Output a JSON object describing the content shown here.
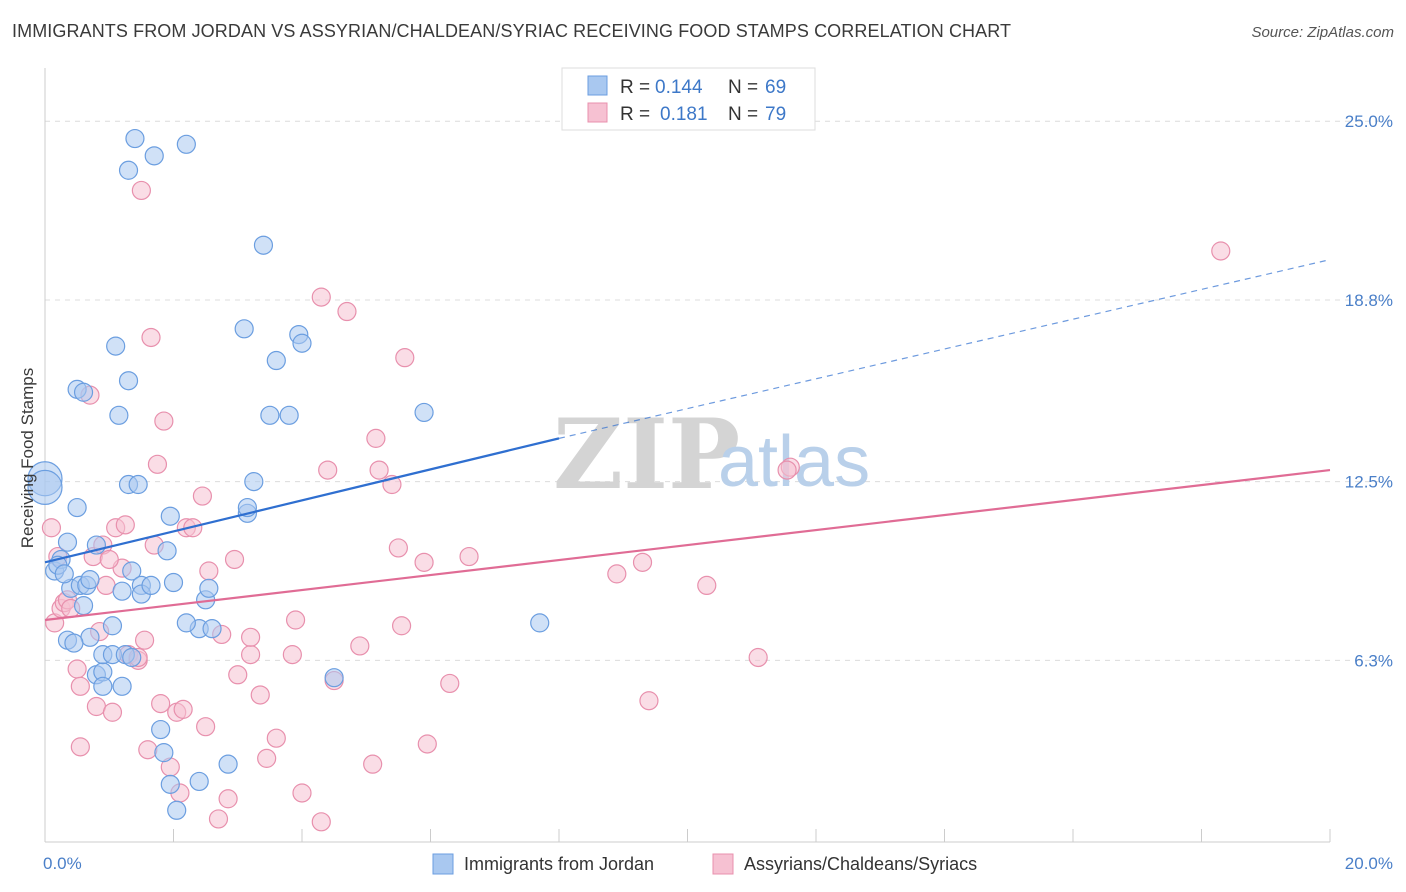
{
  "title": "IMMIGRANTS FROM JORDAN VS ASSYRIAN/CHALDEAN/SYRIAC RECEIVING FOOD STAMPS CORRELATION CHART",
  "source": "Source: ZipAtlas.com",
  "watermark": {
    "zip": "ZIP",
    "atlas": "atlas"
  },
  "legend_top": {
    "rows": [
      {
        "r_label": "R = ",
        "r_value": "0.144",
        "n_label": "N = ",
        "n_value": "69"
      },
      {
        "r_label": "R = ",
        "r_value": "0.181",
        "n_label": "N = ",
        "n_value": "79"
      }
    ]
  },
  "legend_bottom": {
    "items": [
      {
        "label": "Immigrants from Jordan"
      },
      {
        "label": "Assyrians/Chaldeans/Syriacs"
      }
    ]
  },
  "colors": {
    "blue_fill": "#a9c8f0",
    "blue_stroke": "#6b9ee0",
    "blue_line": "#2f6fd0",
    "pink_fill": "#f6c1d2",
    "pink_stroke": "#e890ad",
    "pink_line": "#e06c95",
    "grid": "#dcdcdc",
    "axis_text": "#4a7fc8"
  },
  "chart_data": {
    "type": "scatter",
    "title": "IMMIGRANTS FROM JORDAN VS ASSYRIAN/CHALDEAN/SYRIAC RECEIVING FOOD STAMPS CORRELATION CHART",
    "xlabel": "",
    "ylabel": "Receiving Food Stamps",
    "xlim": [
      0,
      20
    ],
    "ylim": [
      0,
      26.5
    ],
    "x_tick_labels": [
      "0.0%",
      "20.0%"
    ],
    "y_ticks": [
      6.3,
      12.5,
      18.8,
      25.0
    ],
    "y_tick_labels": [
      "6.3%",
      "12.5%",
      "18.8%",
      "25.0%"
    ],
    "grid": true,
    "legend_position": "top-center",
    "series": [
      {
        "name": "Immigrants from Jordan",
        "color": "#a9c8f0",
        "trend": {
          "x": [
            0.0,
            8.0
          ],
          "y": [
            9.7,
            14.0
          ],
          "dashed_to": [
            20.0,
            20.2
          ]
        },
        "points": [
          [
            0.0,
            12.6
          ],
          [
            0.0,
            12.3
          ],
          [
            0.15,
            9.4
          ],
          [
            0.25,
            9.8
          ],
          [
            0.2,
            9.6
          ],
          [
            0.35,
            10.4
          ],
          [
            0.5,
            15.7
          ],
          [
            0.6,
            15.6
          ],
          [
            0.5,
            11.6
          ],
          [
            0.4,
            8.8
          ],
          [
            0.55,
            8.9
          ],
          [
            0.65,
            8.9
          ],
          [
            0.7,
            9.1
          ],
          [
            0.6,
            8.2
          ],
          [
            0.35,
            7.0
          ],
          [
            0.7,
            7.1
          ],
          [
            0.8,
            5.8
          ],
          [
            0.9,
            5.9
          ],
          [
            0.9,
            5.4
          ],
          [
            1.2,
            5.4
          ],
          [
            0.9,
            6.5
          ],
          [
            1.05,
            6.5
          ],
          [
            1.25,
            6.5
          ],
          [
            1.35,
            6.4
          ],
          [
            0.8,
            10.3
          ],
          [
            1.05,
            7.5
          ],
          [
            1.1,
            17.2
          ],
          [
            1.15,
            14.8
          ],
          [
            1.3,
            12.4
          ],
          [
            1.45,
            12.4
          ],
          [
            1.35,
            9.4
          ],
          [
            1.3,
            16.0
          ],
          [
            1.5,
            8.9
          ],
          [
            1.5,
            8.6
          ],
          [
            1.4,
            24.4
          ],
          [
            1.3,
            23.3
          ],
          [
            1.7,
            23.8
          ],
          [
            2.2,
            24.2
          ],
          [
            1.95,
            11.3
          ],
          [
            1.9,
            10.1
          ],
          [
            2.0,
            9.0
          ],
          [
            1.8,
            3.9
          ],
          [
            1.85,
            3.1
          ],
          [
            1.95,
            2.0
          ],
          [
            2.05,
            1.1
          ],
          [
            2.4,
            7.4
          ],
          [
            2.6,
            7.4
          ],
          [
            2.4,
            2.1
          ],
          [
            2.5,
            8.4
          ],
          [
            2.55,
            8.8
          ],
          [
            2.85,
            2.7
          ],
          [
            3.1,
            17.8
          ],
          [
            3.4,
            20.7
          ],
          [
            3.15,
            11.4
          ],
          [
            3.15,
            11.6
          ],
          [
            3.25,
            12.5
          ],
          [
            3.5,
            14.8
          ],
          [
            3.6,
            16.7
          ],
          [
            3.8,
            14.8
          ],
          [
            3.95,
            17.6
          ],
          [
            4.0,
            17.3
          ],
          [
            4.5,
            5.7
          ],
          [
            5.9,
            14.9
          ],
          [
            7.7,
            7.6
          ],
          [
            2.2,
            7.6
          ],
          [
            1.2,
            8.7
          ],
          [
            0.3,
            9.3
          ],
          [
            0.45,
            6.9
          ],
          [
            1.65,
            8.9
          ]
        ]
      },
      {
        "name": "Assyrians/Chaldeans/Syriacs",
        "color": "#f6c1d2",
        "trend": {
          "x": [
            0.0,
            20.0
          ],
          "y": [
            7.7,
            12.9
          ]
        },
        "points": [
          [
            0.1,
            10.9
          ],
          [
            0.15,
            7.6
          ],
          [
            0.25,
            8.1
          ],
          [
            0.3,
            8.3
          ],
          [
            0.35,
            8.4
          ],
          [
            0.5,
            6.0
          ],
          [
            0.55,
            5.4
          ],
          [
            0.55,
            3.3
          ],
          [
            0.7,
            15.5
          ],
          [
            0.75,
            9.9
          ],
          [
            0.8,
            4.7
          ],
          [
            0.85,
            7.3
          ],
          [
            0.9,
            10.3
          ],
          [
            0.95,
            8.9
          ],
          [
            1.05,
            4.5
          ],
          [
            1.1,
            10.9
          ],
          [
            1.2,
            9.5
          ],
          [
            1.25,
            11.0
          ],
          [
            1.3,
            6.5
          ],
          [
            1.45,
            6.3
          ],
          [
            1.45,
            6.4
          ],
          [
            1.5,
            22.6
          ],
          [
            1.55,
            7.0
          ],
          [
            1.6,
            3.2
          ],
          [
            1.65,
            17.5
          ],
          [
            1.7,
            10.3
          ],
          [
            1.75,
            13.1
          ],
          [
            1.8,
            4.8
          ],
          [
            1.85,
            14.6
          ],
          [
            1.95,
            2.6
          ],
          [
            2.05,
            4.5
          ],
          [
            2.1,
            1.7
          ],
          [
            2.15,
            4.6
          ],
          [
            2.2,
            10.9
          ],
          [
            2.3,
            10.9
          ],
          [
            2.45,
            12.0
          ],
          [
            2.5,
            4.0
          ],
          [
            2.55,
            9.4
          ],
          [
            2.7,
            0.8
          ],
          [
            2.75,
            7.2
          ],
          [
            2.85,
            1.5
          ],
          [
            2.95,
            9.8
          ],
          [
            3.0,
            5.8
          ],
          [
            3.2,
            6.5
          ],
          [
            3.2,
            7.1
          ],
          [
            3.35,
            5.1
          ],
          [
            3.45,
            2.9
          ],
          [
            3.6,
            3.6
          ],
          [
            3.85,
            6.5
          ],
          [
            3.9,
            7.7
          ],
          [
            4.0,
            1.7
          ],
          [
            4.3,
            0.7
          ],
          [
            4.3,
            18.9
          ],
          [
            4.4,
            12.9
          ],
          [
            4.5,
            5.6
          ],
          [
            4.7,
            18.4
          ],
          [
            4.9,
            6.8
          ],
          [
            5.1,
            2.7
          ],
          [
            5.15,
            14.0
          ],
          [
            5.2,
            12.9
          ],
          [
            5.4,
            12.4
          ],
          [
            5.5,
            10.2
          ],
          [
            5.55,
            7.5
          ],
          [
            5.6,
            16.8
          ],
          [
            5.9,
            9.7
          ],
          [
            5.95,
            3.4
          ],
          [
            6.3,
            5.5
          ],
          [
            6.6,
            9.9
          ],
          [
            8.9,
            9.3
          ],
          [
            9.3,
            9.7
          ],
          [
            9.4,
            4.9
          ],
          [
            10.3,
            8.9
          ],
          [
            11.1,
            6.4
          ],
          [
            11.6,
            13.0
          ],
          [
            11.55,
            12.9
          ],
          [
            18.3,
            20.5
          ],
          [
            0.2,
            9.9
          ],
          [
            0.4,
            8.1
          ],
          [
            1.0,
            9.8
          ]
        ]
      }
    ]
  }
}
